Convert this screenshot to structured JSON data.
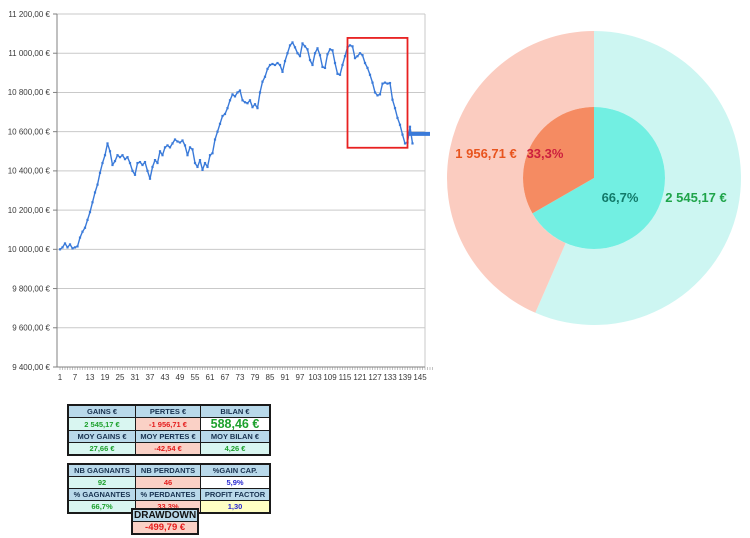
{
  "chart_data": [
    {
      "type": "line",
      "name": "equity-curve",
      "title": "",
      "ylim": [
        9400,
        11200
      ],
      "y_tick_labels": [
        "11 200,00 €",
        "11 000,00 €",
        "10 800,00 €",
        "10 600,00 €",
        "10 400,00 €",
        "10 200,00 €",
        "10 000,00 €",
        "9 800,00 €",
        "9 600,00 €",
        "9 400,00 €"
      ],
      "x_tick_labels": [
        "1",
        "7",
        "13",
        "19",
        "25",
        "31",
        "37",
        "43",
        "49",
        "55",
        "61",
        "67",
        "73",
        "79",
        "85",
        "91",
        "97",
        "103",
        "109",
        "115",
        "121",
        "127",
        "133",
        "139",
        "145"
      ],
      "x_tick_interval": 6,
      "grid": true,
      "legend": false,
      "line_color": "#3a7ad9",
      "equity": [
        10000,
        10010,
        10030,
        10010,
        10025,
        10005,
        10010,
        10015,
        10060,
        10090,
        10110,
        10150,
        10190,
        10240,
        10290,
        10330,
        10390,
        10440,
        10480,
        10540,
        10500,
        10430,
        10450,
        10480,
        10470,
        10480,
        10460,
        10470,
        10440,
        10400,
        10380,
        10440,
        10445,
        10430,
        10445,
        10400,
        10360,
        10420,
        10455,
        10440,
        10500,
        10480,
        10520,
        10530,
        10520,
        10540,
        10560,
        10550,
        10545,
        10555,
        10530,
        10480,
        10520,
        10510,
        10440,
        10420,
        10455,
        10405,
        10440,
        10420,
        10480,
        10490,
        10560,
        10600,
        10640,
        10680,
        10690,
        10720,
        10760,
        10790,
        10780,
        10800,
        10810,
        10760,
        10750,
        10745,
        10760,
        10725,
        10740,
        10720,
        10800,
        10855,
        10880,
        10920,
        10940,
        10945,
        10940,
        10950,
        10940,
        10905,
        10960,
        11000,
        11040,
        11055,
        11030,
        11000,
        10985,
        11050,
        11035,
        11020,
        10965,
        10940,
        11000,
        11025,
        10990,
        10930,
        10925,
        10995,
        11020,
        11015,
        10950,
        10895,
        10890,
        10940,
        10985,
        11030,
        11040,
        11035,
        10975,
        10985,
        11000,
        10990,
        10950,
        10925,
        10890,
        10850,
        10800,
        10785,
        10790,
        10845,
        10850,
        10845,
        10848,
        10763,
        10720,
        10670,
        10635,
        10585,
        10540,
        10545,
        10625,
        10540
      ],
      "end_flat": {
        "from_point": 140,
        "to_point": 149,
        "value": 10588.46
      },
      "highlight_box": {
        "from_point": 116,
        "to_point": 140,
        "top_value": 11078,
        "bottom_value": 10518,
        "color": "#e82020"
      }
    },
    {
      "type": "donut",
      "name": "gains-losses-donut",
      "direction": "clockwise",
      "start_angle_deg": 0,
      "outer_ring": {
        "slices": [
          {
            "name": "gains-amount",
            "label": "2 545,17 €",
            "value": 2545.17,
            "color": "#cdf6f2",
            "label_color": "#1fa44a"
          },
          {
            "name": "losses-amount",
            "label": "1 956,71 €",
            "value": 1956.71,
            "color": "#fbccc0",
            "label_color": "#e8541e"
          }
        ]
      },
      "inner_pie": {
        "slices": [
          {
            "name": "win-pct",
            "label": "66,7%",
            "value": 66.7,
            "color": "#72efe2",
            "label_color": "#127a6a"
          },
          {
            "name": "loss-pct",
            "label": "33,3%",
            "value": 33.3,
            "color": "#f58b62",
            "label_color": "#cc1f3d"
          }
        ]
      }
    }
  ],
  "tables": {
    "summary": {
      "rows": [
        {
          "cells": [
            "GAINS €",
            "PERTES €",
            "BILAN €"
          ]
        },
        {
          "cells": [
            "2 545,17 €",
            "-1 956,71 €",
            "588,46 €"
          ]
        },
        {
          "cells": [
            "MOY GAINS €",
            "MOY PERTES €",
            "MOY BILAN €"
          ]
        },
        {
          "cells": [
            "27,66 €",
            "-42,54 €",
            "4,26 €"
          ]
        }
      ]
    },
    "counts": {
      "rows": [
        {
          "cells": [
            "NB GAGNANTS",
            "NB PERDANTS",
            "%GAIN CAP."
          ]
        },
        {
          "cells": [
            "92",
            "46",
            "5,9%"
          ]
        },
        {
          "cells": [
            "% GAGNANTES",
            "% PERDANTES",
            "PROFIT FACTOR"
          ]
        },
        {
          "cells": [
            "66,7%",
            "33,3%",
            "1,30"
          ]
        }
      ],
      "drawdown": {
        "label": "DRAWDOWN",
        "value": "-499,79 €"
      }
    }
  },
  "colors": {
    "header_bg": "#b9d9ea",
    "positive_bg": "#d9f6f1",
    "negative_bg": "#fad1c6",
    "factor_bg": "#ffffc4",
    "positive_text": "#1da12d",
    "negative_text": "#e41c1c",
    "metric_text": "#2a2ad0",
    "line_color": "#3a7ad9",
    "highlight_box": "#e82020"
  }
}
